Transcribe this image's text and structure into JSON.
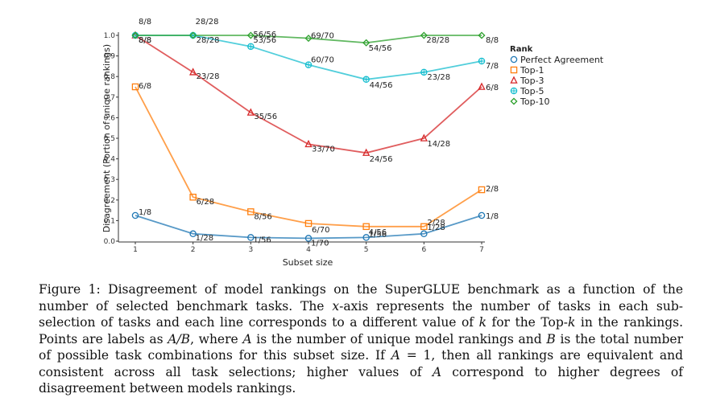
{
  "chart_data": {
    "type": "line",
    "title": "",
    "xlabel": "Subset size",
    "ylabel": "Disagreement (Portion of unique rankings)",
    "xlim": [
      1,
      7
    ],
    "ylim": [
      0,
      1.0
    ],
    "x": [
      1,
      2,
      3,
      4,
      5,
      6,
      7
    ],
    "x_ticks": [
      "1",
      "2",
      "3",
      "4",
      "5",
      "6",
      "7"
    ],
    "y_ticks": [
      "0.0",
      "0.1",
      "0.2",
      "0.3",
      "0.4",
      "0.5",
      "0.6",
      "0.7",
      "0.8",
      "0.9",
      "1.0"
    ],
    "legend": {
      "title": "Rank",
      "position": "right"
    },
    "series": [
      {
        "name": "Perfect Agreement",
        "color": "#1f77b4",
        "marker": "circle",
        "values": [
          0.125,
          0.036,
          0.018,
          0.014,
          0.018,
          0.036,
          0.125
        ],
        "labels": [
          "1/8",
          "1/28",
          "1/56",
          "1/70",
          "1/56",
          "1/28",
          "1/8"
        ]
      },
      {
        "name": "Top-1",
        "color": "#ff7f0e",
        "marker": "square",
        "values": [
          0.75,
          0.214,
          0.143,
          0.086,
          0.071,
          0.071,
          0.25
        ],
        "labels": [
          "6/8",
          "6/28",
          "8/56",
          "6/70",
          "4/56",
          "2/28",
          "2/8"
        ]
      },
      {
        "name": "Top-3",
        "color": "#d62728",
        "marker": "triangle",
        "values": [
          1.0,
          0.821,
          0.625,
          0.471,
          0.429,
          0.5,
          0.75
        ],
        "labels": [
          "8/8",
          "23/28",
          "35/56",
          "33/70",
          "24/56",
          "14/28",
          "6/8"
        ]
      },
      {
        "name": "Top-5",
        "color": "#17becf",
        "marker": "diamond-cross",
        "values": [
          1.0,
          1.0,
          0.946,
          0.857,
          0.786,
          0.821,
          0.875
        ],
        "labels": [
          "8/8",
          "28/28",
          "53/56",
          "60/70",
          "44/56",
          "23/28",
          "7/8"
        ]
      },
      {
        "name": "Top-10",
        "color": "#2ca02c",
        "marker": "diamond",
        "values": [
          1.0,
          1.0,
          1.0,
          0.986,
          0.964,
          1.0,
          1.0
        ],
        "labels": [
          "8/8",
          "28/28",
          "56/56",
          "69/70",
          "54/56",
          "28/28",
          "8/8"
        ]
      }
    ]
  },
  "caption": {
    "prefix": "Figure 1: Disagreement of model rankings on the SuperGLUE benchmark as a function of the number of selected benchmark tasks. The ",
    "var_x": "x",
    "mid1": "-axis represents the number of tasks in each sub-selection of tasks and each line corresponds to a different value of ",
    "var_k1": "k",
    "mid2": " for the Top-",
    "var_k2": "k",
    "mid3": " in the rankings. Points are labels as ",
    "var_ab": "A/B",
    "mid4": ", where ",
    "var_a1": "A",
    "mid5": " is the number of unique model rankings and ",
    "var_b": "B",
    "mid6": " is the total number of possible task combinations for this subset size. If ",
    "var_a2": "A",
    "mid7": " = 1, then all rankings are equivalent and consistent across all task selections; higher values of ",
    "var_a3": "A",
    "suffix": " correspond to higher degrees of disagreement between models rankings."
  }
}
